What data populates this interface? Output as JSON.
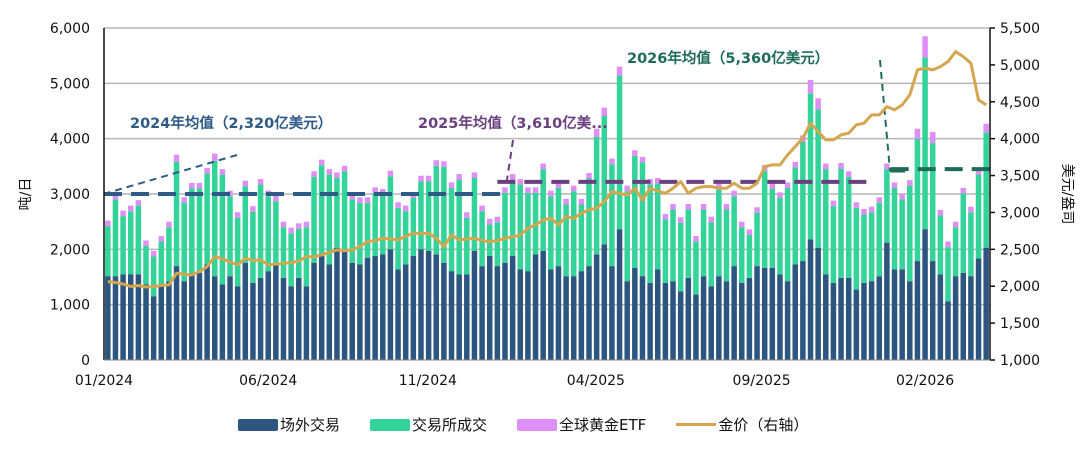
{
  "chart_data": {
    "type": "bar",
    "stacked": true,
    "title": "",
    "ylabel_left": "吨/日",
    "ylabel_right": "美元/盎司",
    "ylim_left": [
      0,
      6000
    ],
    "ylim_right": [
      1000,
      5500
    ],
    "yticks_left": [
      "0",
      "1,000",
      "2,000",
      "3,000",
      "4,000",
      "5,000",
      "6,000"
    ],
    "yticks_right": [
      "1,000",
      "1,500",
      "2,000",
      "2,500",
      "3,000",
      "3,500",
      "4,000",
      "4,500",
      "5,000",
      "5,500"
    ],
    "grid": true,
    "legend_placement": "bottom",
    "x_ticks": [
      {
        "label": "01/2024",
        "week": 0
      },
      {
        "label": "06/2024",
        "week": 21.5
      },
      {
        "label": "11/2024",
        "week": 42.4
      },
      {
        "label": "04/2025",
        "week": 64.4
      },
      {
        "label": "09/2025",
        "week": 86.1
      },
      {
        "label": "02/2026",
        "week": 107.5
      }
    ],
    "series": [
      {
        "name": "场外交易",
        "axis": "left",
        "kind": "bar",
        "color": "#2c5680",
        "values": [
          1515,
          1515,
          1545,
          1545,
          1545,
          1364,
          1152,
          1333,
          1424,
          1697,
          1424,
          1576,
          1576,
          1727,
          1515,
          1364,
          1515,
          1333,
          1758,
          1394,
          1485,
          1606,
          1727,
          1485,
          1333,
          1485,
          1333,
          1758,
          1879,
          1727,
          2030,
          2000,
          1758,
          1727,
          1848,
          1879,
          1909,
          2000,
          1636,
          1727,
          1879,
          2000,
          1970,
          1909,
          1758,
          1606,
          1545,
          1545,
          1970,
          1697,
          1879,
          1697,
          1758,
          1879,
          1636,
          1606,
          1909,
          1970,
          1636,
          1697,
          1515,
          1515,
          1606,
          1697,
          1909,
          2091,
          1697,
          2364,
          1424,
          1667,
          1515,
          1394,
          1636,
          1394,
          1424,
          1242,
          1485,
          1182,
          1515,
          1333,
          1515,
          1424,
          1697,
          1394,
          1485,
          1697,
          1667,
          1667,
          1545,
          1424,
          1727,
          1788,
          2182,
          2030,
          1545,
          1394,
          1485,
          1485,
          1273,
          1394,
          1424,
          1515,
          2121,
          1636,
          1636,
          1424,
          1788,
          2364,
          1788,
          1545,
          1061,
          1515,
          1576,
          1515,
          1836,
          2030
        ]
      },
      {
        "name": "交易所成交",
        "axis": "left",
        "kind": "bar",
        "color": "#33d39a",
        "values": [
          905,
          1385,
          1055,
          1145,
          1245,
          696,
          718,
          807,
          976,
          1883,
          1416,
          1524,
          1524,
          1643,
          2085,
          1986,
          1445,
          1237,
          1382,
          1286,
          1685,
          1354,
          1143,
          915,
          957,
          885,
          1067,
          1552,
          1641,
          1623,
          1260,
          1410,
          1142,
          1113,
          992,
          1141,
          1081,
          1320,
          1114,
          963,
          1051,
          1230,
          1260,
          1601,
          1732,
          1504,
          1715,
          1025,
          1320,
          993,
          571,
          793,
          1262,
          1381,
          1534,
          1414,
          1111,
          1480,
          1324,
          1413,
          1295,
          1535,
          1204,
          1583,
          2121,
          2319,
          1843,
          2776,
          1626,
          2023,
          2055,
          1776,
          1554,
          1146,
          1296,
          1238,
          1235,
          958,
          1205,
          1157,
          1565,
          1296,
          1263,
          1006,
          775,
          963,
          1753,
          1423,
          1385,
          1686,
          1753,
          2152,
          2638,
          2500,
          1905,
          1386,
          1975,
          1825,
          1477,
          1236,
          1246,
          1325,
          1329,
          1474,
          1264,
          1726,
          2212,
          3106,
          2132,
          1065,
          979,
          885,
          1434,
          1155,
          1514,
          2080
        ]
      },
      {
        "name": "全球黄金ETF",
        "axis": "left",
        "kind": "bar",
        "color": "#dd8ff5",
        "values": [
          100,
          100,
          100,
          100,
          100,
          100,
          100,
          100,
          100,
          130,
          100,
          100,
          100,
          100,
          130,
          100,
          100,
          100,
          100,
          100,
          100,
          100,
          100,
          100,
          100,
          100,
          100,
          100,
          100,
          100,
          100,
          100,
          100,
          100,
          100,
          100,
          100,
          100,
          100,
          100,
          100,
          100,
          100,
          100,
          100,
          100,
          100,
          100,
          100,
          100,
          100,
          100,
          100,
          100,
          100,
          100,
          100,
          100,
          100,
          100,
          100,
          100,
          100,
          100,
          150,
          150,
          100,
          160,
          100,
          100,
          100,
          100,
          100,
          100,
          100,
          100,
          100,
          100,
          100,
          100,
          100,
          100,
          100,
          100,
          100,
          100,
          100,
          100,
          100,
          100,
          100,
          120,
          240,
          200,
          100,
          100,
          100,
          100,
          100,
          100,
          100,
          100,
          100,
          100,
          100,
          100,
          180,
          380,
          200,
          100,
          100,
          100,
          100,
          100,
          100,
          160
        ]
      },
      {
        "name": "金价（右轴）",
        "axis": "right",
        "kind": "line",
        "color": "#d4a64f",
        "values": [
          2063,
          2050,
          2030,
          1996,
          2010,
          1990,
          1996,
          2010,
          2018,
          2176,
          2160,
          2154,
          2200,
          2266,
          2402,
          2370,
          2330,
          2289,
          2379,
          2350,
          2357,
          2289,
          2300,
          2312,
          2320,
          2340,
          2402,
          2400,
          2424,
          2460,
          2492,
          2480,
          2492,
          2540,
          2605,
          2620,
          2650,
          2640,
          2628,
          2680,
          2718,
          2715,
          2718,
          2650,
          2537,
          2695,
          2628,
          2640,
          2650,
          2620,
          2605,
          2620,
          2650,
          2670,
          2695,
          2786,
          2831,
          2898,
          2921,
          2831,
          2944,
          2921,
          2989,
          3034,
          3057,
          3147,
          3283,
          3260,
          3237,
          3328,
          3170,
          3328,
          3290,
          3260,
          3328,
          3418,
          3260,
          3328,
          3350,
          3350,
          3328,
          3328,
          3396,
          3328,
          3328,
          3396,
          3621,
          3644,
          3644,
          3780,
          3893,
          4006,
          4209,
          4096,
          3983,
          3983,
          4051,
          4074,
          4187,
          4209,
          4322,
          4322,
          4435,
          4390,
          4458,
          4593,
          4932,
          4955,
          4932,
          4977,
          5045,
          5180,
          5113,
          5023,
          4526,
          4458
        ]
      }
    ],
    "annotations": [
      {
        "text": "2024年均值（2,320亿美元）",
        "color": "#2e5a87",
        "avg_tons": 3000,
        "from_week": 0,
        "to_week": 52.5
      },
      {
        "text": "2025年均值（3,610亿美...",
        "color": "#6b3f7f",
        "avg_tons": 3220,
        "from_week": 51.5,
        "to_week": 100.5
      },
      {
        "text": "2026年均值（5,360亿美元）",
        "color": "#1e6b5a",
        "avg_tons": 3450,
        "from_week": 103,
        "to_week": 116
      }
    ]
  }
}
